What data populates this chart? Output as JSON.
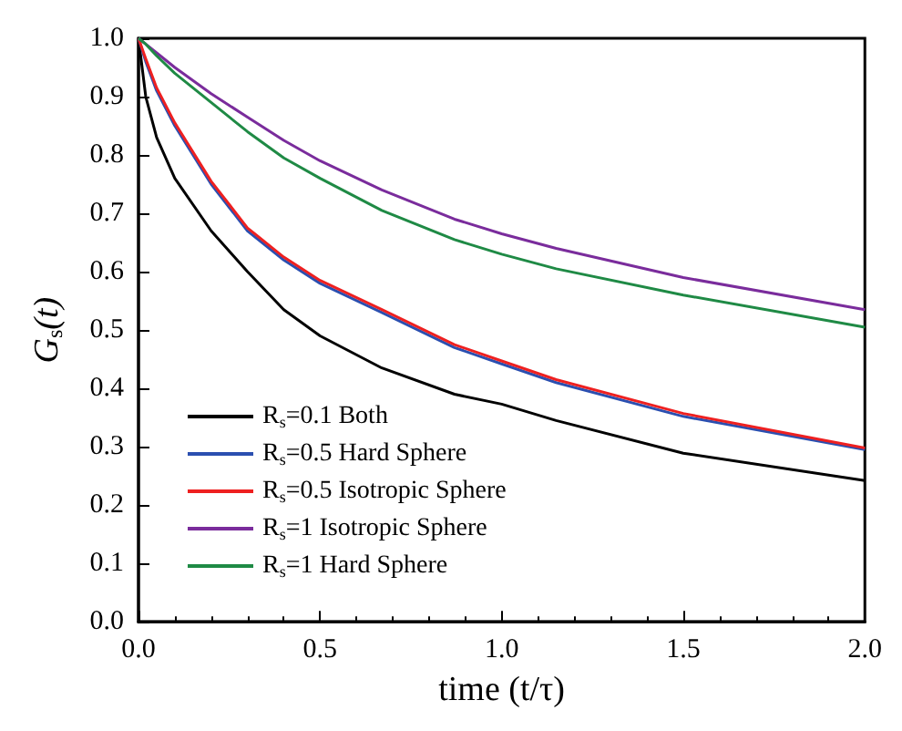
{
  "chart_data": {
    "type": "line",
    "xlabel": "time (t/τ)",
    "ylabel": "G$_{s}$(t)",
    "xlim": [
      0,
      2.0
    ],
    "xticks": [
      {
        "value": 0,
        "label": "0.0"
      },
      0.5,
      {
        "value": 1,
        "label": "1.0"
      },
      1.5,
      {
        "value": 2,
        "label": "2.0"
      }
    ],
    "ylim": [
      0,
      1.0
    ],
    "yticks": [
      {
        "value": 0,
        "label": "0.0"
      },
      0.1,
      0.2,
      0.3,
      0.4,
      0.5,
      0.6,
      0.7,
      0.8,
      0.9,
      {
        "value": 1,
        "label": "1.0"
      }
    ],
    "legend": "bottom left",
    "grid": false,
    "marker": "none",
    "line_style": "solid",
    "x": [
      0,
      0.02,
      0.05,
      0.1,
      0.2,
      0.3,
      0.4,
      0.5,
      0.67,
      0.87,
      1.0,
      1.15,
      1.5,
      2.0
    ],
    "series": [
      {
        "name": "R$_{s}$=0.1 Both",
        "color": "#000000",
        "values": [
          1.0,
          0.9,
          0.83,
          0.76,
          0.67,
          0.6,
          0.535,
          0.49,
          0.435,
          0.39,
          0.373,
          0.345,
          0.289,
          0.242
        ]
      },
      {
        "name": "R$_{s}$=0.5 Hard Sphere",
        "color": "#2b4fb0",
        "values": [
          1.0,
          0.96,
          0.91,
          0.85,
          0.75,
          0.67,
          0.62,
          0.58,
          0.53,
          0.47,
          0.442,
          0.41,
          0.352,
          0.295
        ]
      },
      {
        "name": "R$_{s}$=0.5 Isotropic Sphere",
        "color": "#ee2020",
        "values": [
          1.0,
          0.965,
          0.915,
          0.855,
          0.755,
          0.675,
          0.625,
          0.585,
          0.535,
          0.475,
          0.447,
          0.415,
          0.357,
          0.298
        ]
      },
      {
        "name": "R$_{s}$=1 Isotropic Sphere",
        "color": "#7a2c9c",
        "values": [
          1.0,
          0.99,
          0.975,
          0.95,
          0.905,
          0.865,
          0.825,
          0.79,
          0.74,
          0.69,
          0.665,
          0.64,
          0.59,
          0.535
        ]
      },
      {
        "name": "R$_{s}$=1 Hard Sphere",
        "color": "#1f8a45",
        "values": [
          1.0,
          0.99,
          0.97,
          0.94,
          0.89,
          0.84,
          0.795,
          0.76,
          0.705,
          0.655,
          0.63,
          0.605,
          0.56,
          0.505
        ]
      }
    ]
  }
}
